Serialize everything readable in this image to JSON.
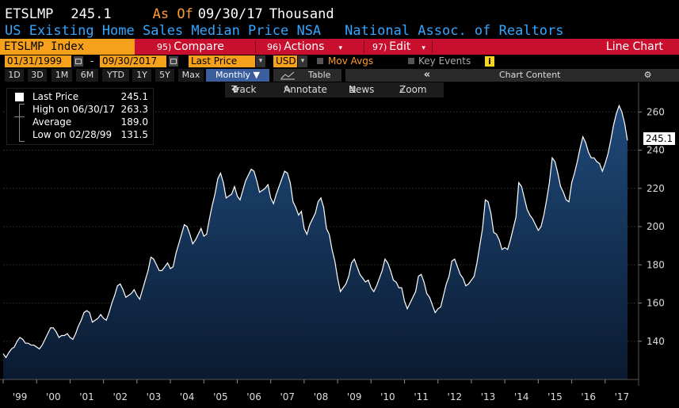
{
  "header": {
    "ticker": "ETSLMP",
    "last_value": "245.1",
    "as_of_label": "As Of",
    "as_of_date": "09/30/17",
    "unit": "Thousand",
    "description": "US Existing Home Sales Median Price NSA",
    "source": "National Assoc. of Realtors"
  },
  "toolbar": {
    "index_label": "ETSLMP Index",
    "compare": {
      "num": "95)",
      "label": "Compare"
    },
    "actions": {
      "num": "96)",
      "label": "Actions"
    },
    "edit": {
      "num": "97)",
      "label": "Edit"
    },
    "chart_type": "Line Chart"
  },
  "controls": {
    "start_date": "01/31/1999",
    "dash": "-",
    "end_date": "09/30/2017",
    "field": "Last Price",
    "currency": "USD",
    "mov_avgs": "Mov Avgs",
    "key_events": "Key Events",
    "info": "i"
  },
  "periods": [
    "1D",
    "3D",
    "1M",
    "6M",
    "YTD",
    "1Y",
    "5Y",
    "Max"
  ],
  "frequency": "Monthly ▼",
  "table_label": "Table",
  "collapse": "«",
  "chart_content": "Chart Content",
  "chart_tools": {
    "track": "Track",
    "annotate": "Annotate",
    "news": "News",
    "zoom": "Zoom"
  },
  "legend": {
    "last_price_label": "Last Price",
    "last_price_value": "245.1",
    "high_label": "High on 06/30/17",
    "high_value": "263.3",
    "average_label": "Average",
    "average_value": "189.0",
    "low_label": "Low on 02/28/99",
    "low_value": "131.5"
  },
  "colors": {
    "line": "#ffffff",
    "fill_top": "#1f4a7a",
    "fill_bottom": "#0a1a30",
    "orange": "#ff9b2e",
    "blue_text": "#33a6ff",
    "red_bar": "#c8102e"
  },
  "chart_data": {
    "type": "area",
    "x_start": "1999-01",
    "frequency": "monthly",
    "ylim": [
      120,
      268
    ],
    "yticks": [
      140,
      160,
      180,
      200,
      220,
      240,
      260
    ],
    "xtick_labels": [
      "'99",
      "'00",
      "'01",
      "'02",
      "'03",
      "'04",
      "'05",
      "'06",
      "'07",
      "'08",
      "'09",
      "'10",
      "'11",
      "'12",
      "'13",
      "'14",
      "'15",
      "'16",
      "'17"
    ],
    "last_value_tag": "245.1",
    "values": [
      133.5,
      131.5,
      134,
      136,
      137,
      140,
      142,
      141,
      139,
      139,
      138,
      138,
      137,
      136,
      138,
      141,
      144,
      147,
      147,
      145,
      142,
      143,
      143,
      144,
      142,
      141,
      144,
      148,
      151,
      155,
      156,
      155,
      150,
      151,
      152,
      154,
      152,
      151,
      155,
      160,
      164,
      169,
      170,
      167,
      163,
      164,
      165,
      167,
      164,
      162,
      167,
      172,
      177,
      184,
      183,
      180,
      177,
      177,
      179,
      181,
      178,
      179,
      186,
      191,
      196,
      201,
      200,
      196,
      191,
      193,
      196,
      199,
      195,
      196,
      204,
      211,
      217,
      225,
      228,
      223,
      215,
      216,
      217,
      221,
      216,
      214,
      219,
      224,
      227,
      230,
      229,
      224,
      218,
      219,
      220,
      222,
      215,
      212,
      217,
      221,
      225,
      229,
      228,
      223,
      213,
      210,
      206,
      208,
      199,
      196,
      201,
      204,
      207,
      213,
      215,
      210,
      199,
      196,
      188,
      182,
      173,
      166,
      168,
      170,
      174,
      181,
      183,
      179,
      175,
      173,
      171,
      172,
      168,
      166,
      169,
      173,
      177,
      183,
      181,
      177,
      172,
      171,
      168,
      168,
      161,
      157,
      160,
      163,
      166,
      174,
      175,
      171,
      165,
      163,
      159,
      155,
      157,
      158,
      164,
      170,
      174,
      182,
      183,
      179,
      175,
      173,
      169,
      170,
      172,
      174,
      181,
      190,
      199,
      214,
      213,
      207,
      197,
      196,
      193,
      188,
      189,
      188,
      193,
      199,
      205,
      223,
      221,
      215,
      209,
      206,
      204,
      201,
      198,
      200,
      206,
      214,
      223,
      236,
      234,
      228,
      221,
      218,
      214,
      213,
      223,
      228,
      234,
      241,
      247,
      244,
      239,
      236,
      236,
      234,
      233,
      229,
      233,
      238,
      245,
      253,
      259,
      263.3,
      260,
      254,
      245.1
    ]
  }
}
